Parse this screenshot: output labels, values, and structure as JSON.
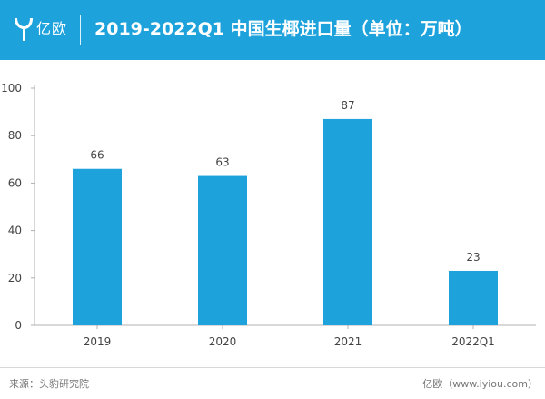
{
  "header": {
    "logo_text": "亿欧",
    "title": "2019-2022Q1 中国生椰进口量（单位：万吨）"
  },
  "chart_data": {
    "type": "bar",
    "title": "2019-2022Q1 中国生椰进口量（单位：万吨）",
    "categories": [
      "2019",
      "2020",
      "2021",
      "2022Q1"
    ],
    "values": [
      66,
      63,
      87,
      23
    ],
    "xlabel": "",
    "ylabel": "",
    "ylim": [
      0,
      100
    ],
    "yticks": [
      0,
      20,
      40,
      60,
      80,
      100
    ],
    "grid": false,
    "bar_color": "#1da2dc"
  },
  "footer": {
    "source": "来源：头豹研究院",
    "credit": "亿欧（www.iyiou.com）"
  },
  "colors": {
    "brand": "#1da2dc",
    "axis": "#b0b0b0",
    "text": "#444444"
  }
}
